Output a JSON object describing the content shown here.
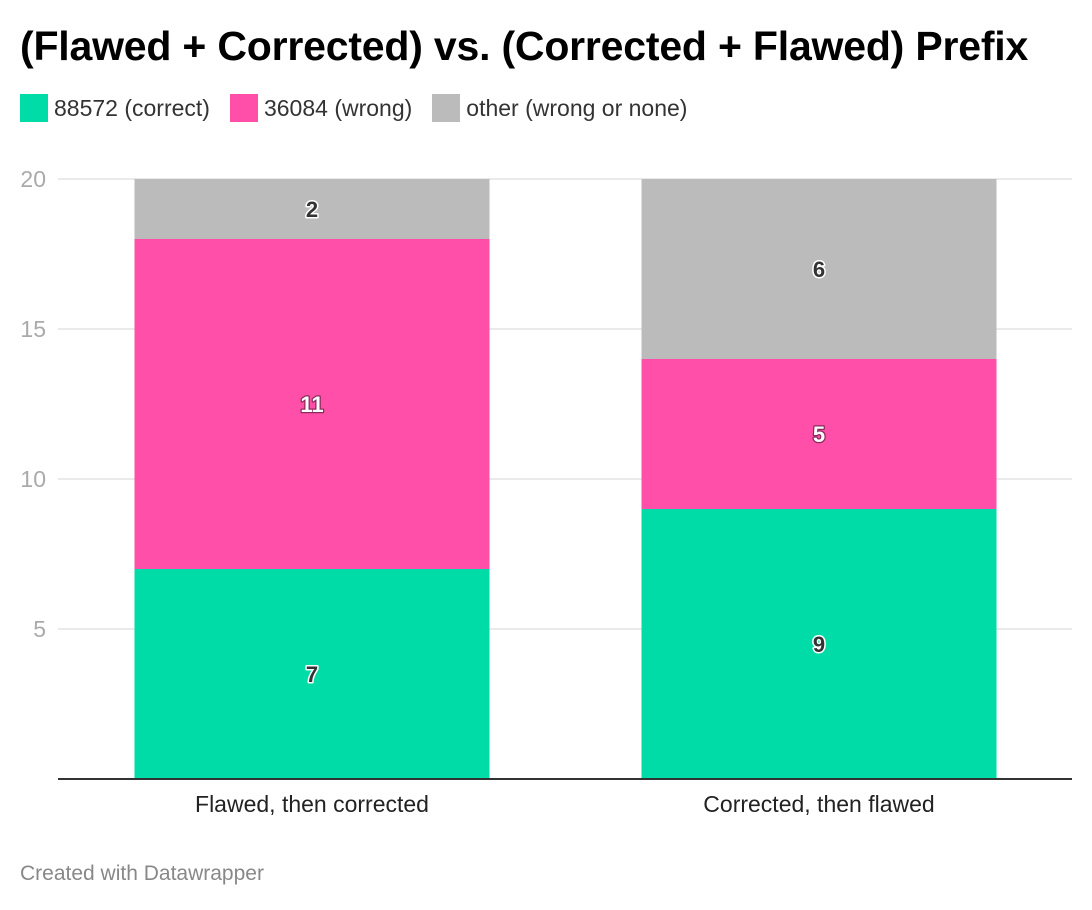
{
  "footer": "Created with Datawrapper",
  "chart_data": {
    "type": "bar",
    "stacked": true,
    "title": "(Flawed + Corrected) vs. (Corrected + Flawed) Prefix",
    "categories": [
      "Flawed, then corrected",
      "Corrected, then flawed"
    ],
    "series": [
      {
        "name": "88572 (correct)",
        "color": "#00dca7",
        "values": [
          7,
          9
        ]
      },
      {
        "name": "36084 (wrong)",
        "color": "#ff4fa8",
        "values": [
          11,
          5
        ]
      },
      {
        "name": "other (wrong or none)",
        "color": "#bbbbbb",
        "values": [
          2,
          6
        ]
      }
    ],
    "yticks": [
      5,
      10,
      15,
      20
    ],
    "ylim": [
      0,
      20
    ],
    "grid": true,
    "legend": "top-left",
    "data_labels": true
  }
}
